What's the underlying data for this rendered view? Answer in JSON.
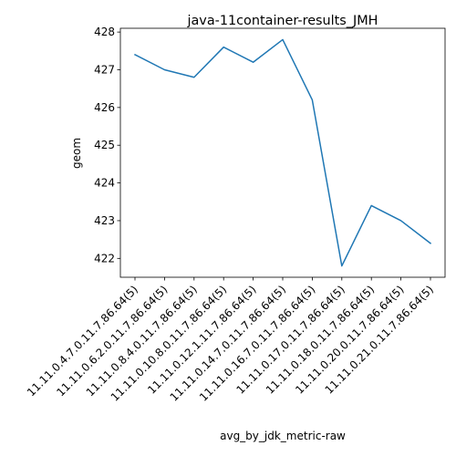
{
  "chart_data": {
    "type": "line",
    "title": "java-11container-results_JMH",
    "xlabel": "avg_by_jdk_metric-raw",
    "ylabel": "geom",
    "categories": [
      "11.11.0.4.7.0.11.7.86.64(5)",
      "11.11.0.6.2.0.11.7.86.64(5)",
      "11.11.0.8.4.0.11.7.86.64(5)",
      "11.11.0.10.8.0.11.7.86.64(5)",
      "11.11.0.12.1.11.7.86.64(5)",
      "11.11.0.14.7.0.11.7.86.64(5)",
      "11.11.0.16.7.0.11.7.86.64(5)",
      "11.11.0.17.0.11.7.86.64(5)",
      "11.11.0.18.0.11.7.86.64(5)",
      "11.11.0.20.0.11.7.86.64(5)",
      "11.11.0.21.0.11.7.86.64(5)"
    ],
    "series": [
      {
        "values": [
          427.4,
          427.0,
          426.8,
          427.6,
          427.2,
          427.8,
          426.2,
          421.8,
          423.4,
          423.0,
          422.4
        ]
      }
    ],
    "yticks": [
      422,
      423,
      424,
      425,
      426,
      427,
      428
    ],
    "ylim": [
      421.5,
      428.1
    ],
    "grid": false,
    "legend": "none",
    "color": "#1f77b4"
  }
}
